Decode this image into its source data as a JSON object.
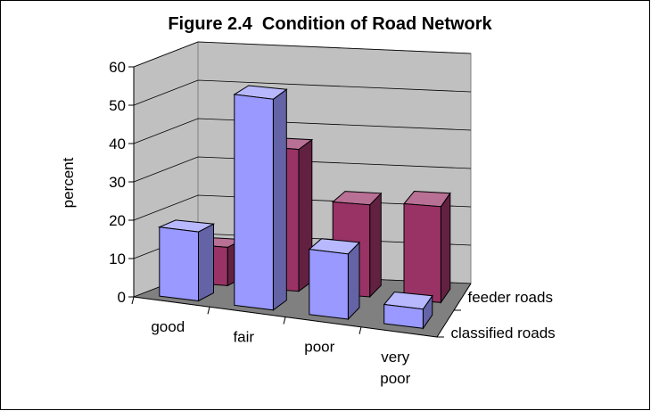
{
  "chart_data": {
    "type": "bar3d",
    "title": "Figure 2.4  Condition of Road Network",
    "y_label": "percent",
    "categories": [
      "good",
      "fair",
      "poor",
      "very poor"
    ],
    "series": [
      {
        "name": "classified roads",
        "color": "#9999ff",
        "values": [
          18,
          55,
          17,
          5
        ]
      },
      {
        "name": "feeder roads",
        "color": "#993366",
        "values": [
          10,
          37,
          24,
          25
        ]
      }
    ],
    "ylim": [
      0,
      60
    ],
    "yticks": [
      0,
      10,
      20,
      30,
      40,
      50,
      60
    ],
    "grid": true
  }
}
